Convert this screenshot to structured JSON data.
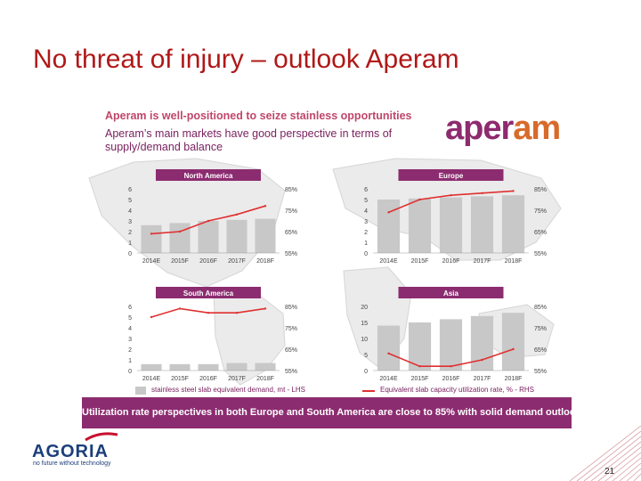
{
  "slide_title": "No threat of injury – outlook Aperam",
  "panel": {
    "headline": "Aperam is well-positioned to seize stainless opportunities",
    "subheadline": "Aperam’s main markets have good perspective in terms of supply/demand balance",
    "logo_part1": "aper",
    "logo_part2": "am",
    "banner": "Utilization rate perspectives in both Europe and South America are close to 85% with solid demand outlook"
  },
  "legend": {
    "bar_label": "stainless steel slab equivalent demand, mt - LHS",
    "line_label": "Equivalent slab capacity utilization rate, % - RHS"
  },
  "chart_data": [
    {
      "type": "bar",
      "title": "North America",
      "categories": [
        "2014E",
        "2015F",
        "2016F",
        "2017F",
        "2018F"
      ],
      "left_ticks": [
        "0",
        "1",
        "2",
        "3",
        "4",
        "5",
        "6"
      ],
      "right_ticks": [
        "85%",
        "75%",
        "65%",
        "55%"
      ],
      "ylim": [
        0,
        6
      ],
      "y2lim": [
        55,
        85
      ],
      "series": [
        {
          "name": "stainless steel slab equivalent demand, mt - LHS",
          "axis": "left",
          "values": [
            2.6,
            2.8,
            3.0,
            3.1,
            3.2
          ]
        },
        {
          "name": "Equivalent slab capacity utilization rate, % - RHS",
          "axis": "right",
          "values": [
            64,
            65,
            70,
            73,
            77
          ]
        }
      ]
    },
    {
      "type": "bar",
      "title": "Europe",
      "categories": [
        "2014E",
        "2015F",
        "2016F",
        "2017F",
        "2018F"
      ],
      "left_ticks": [
        "0",
        "1",
        "2",
        "3",
        "4",
        "5",
        "6"
      ],
      "right_ticks": [
        "85%",
        "75%",
        "65%",
        "55%"
      ],
      "ylim": [
        0,
        6
      ],
      "y2lim": [
        55,
        85
      ],
      "series": [
        {
          "name": "stainless steel slab equivalent demand, mt - LHS",
          "axis": "left",
          "values": [
            5.0,
            5.1,
            5.2,
            5.3,
            5.4
          ]
        },
        {
          "name": "Equivalent slab capacity utilization rate, % - RHS",
          "axis": "right",
          "values": [
            74,
            80,
            82,
            83,
            84
          ]
        }
      ]
    },
    {
      "type": "bar",
      "title": "South America",
      "categories": [
        "2014E",
        "2015F",
        "2016F",
        "2017F",
        "2018F"
      ],
      "left_ticks": [
        "0",
        "1",
        "2",
        "3",
        "4",
        "5",
        "6"
      ],
      "right_ticks": [
        "85%",
        "75%",
        "65%",
        "55%"
      ],
      "ylim": [
        0,
        6
      ],
      "y2lim": [
        55,
        85
      ],
      "series": [
        {
          "name": "stainless steel slab equivalent demand, mt - LHS",
          "axis": "left",
          "values": [
            0.6,
            0.6,
            0.6,
            0.7,
            0.7
          ]
        },
        {
          "name": "Equivalent slab capacity utilization rate, % - RHS",
          "axis": "right",
          "values": [
            80,
            84,
            82,
            82,
            84
          ]
        }
      ]
    },
    {
      "type": "bar",
      "title": "Asia",
      "categories": [
        "2014E",
        "2015F",
        "2016F",
        "2017F",
        "2018F"
      ],
      "left_ticks": [
        "0",
        "5",
        "10",
        "15",
        "20"
      ],
      "right_ticks": [
        "85%",
        "75%",
        "65%",
        "55%"
      ],
      "ylim": [
        0,
        20
      ],
      "y2lim": [
        55,
        85
      ],
      "series": [
        {
          "name": "stainless steel slab equivalent demand, mt - LHS",
          "axis": "left",
          "values": [
            14,
            15,
            16,
            17,
            18
          ]
        },
        {
          "name": "Equivalent slab capacity utilization rate, % - RHS",
          "axis": "right",
          "values": [
            63,
            57,
            57,
            60,
            65
          ]
        }
      ]
    }
  ],
  "footer": {
    "agoria_name": "AGORIA",
    "agoria_tagline": "no future without technology",
    "page_number": "21"
  },
  "colors": {
    "title": "#b01818",
    "bar": "#c8c8c8",
    "line": "#e03030",
    "header": "#8c2c70",
    "banner": "#8c2c70"
  }
}
